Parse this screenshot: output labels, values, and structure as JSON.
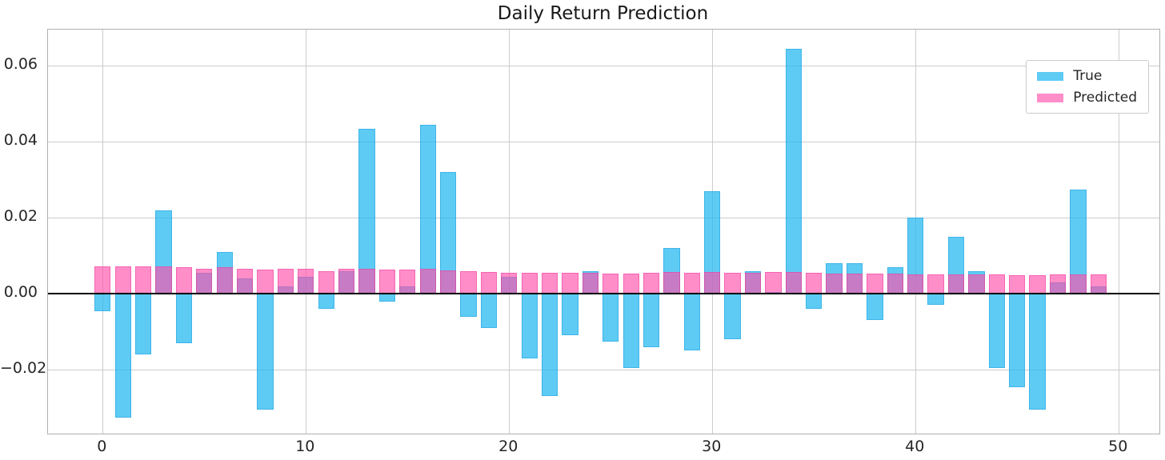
{
  "title": "Daily Return Prediction",
  "legend": {
    "items": [
      {
        "label": "True",
        "color": "rgba(40,185,240,0.75)"
      },
      {
        "label": "Predicted",
        "color": "rgba(255,80,170,0.65)"
      }
    ]
  },
  "colors": {
    "background": "#ffffff",
    "grid": "#cccccc",
    "spine": "#b0b0b0",
    "zero_line": "#000000",
    "text": "#262626",
    "true_bar": "rgba(40,185,240,0.75)",
    "true_bar_edge": "rgba(30,160,220,0.5)",
    "predicted_bar": "rgba(255,80,170,0.65)",
    "predicted_bar_edge": "rgba(235,50,150,0.45)"
  },
  "chart_data": {
    "type": "bar",
    "title": "Daily Return Prediction",
    "xlabel": "",
    "ylabel": "",
    "overlay": true,
    "bar_width": 0.8,
    "grid": true,
    "zero_line": true,
    "legend_position": "upper right",
    "xlim": [
      -2.69,
      52.0
    ],
    "ylim": [
      -0.0368,
      0.0695
    ],
    "x": [
      0,
      1,
      2,
      3,
      4,
      5,
      6,
      7,
      8,
      9,
      10,
      11,
      12,
      13,
      14,
      15,
      16,
      17,
      18,
      19,
      20,
      21,
      22,
      23,
      24,
      25,
      26,
      27,
      28,
      29,
      30,
      31,
      32,
      33,
      34,
      35,
      36,
      37,
      38,
      39,
      40,
      41,
      42,
      43,
      44,
      45,
      46,
      47,
      48,
      49
    ],
    "x_ticks": [
      {
        "value": 0,
        "label": "0"
      },
      {
        "value": 10,
        "label": "10"
      },
      {
        "value": 20,
        "label": "20"
      },
      {
        "value": 30,
        "label": "30"
      },
      {
        "value": 40,
        "label": "40"
      },
      {
        "value": 50,
        "label": "50"
      }
    ],
    "y_ticks": [
      {
        "value": 0.06,
        "label": "0.06"
      },
      {
        "value": 0.04,
        "label": "0.04"
      },
      {
        "value": 0.02,
        "label": "0.02"
      },
      {
        "value": 0.0,
        "label": "0.00"
      },
      {
        "value": -0.02,
        "label": "−0.02"
      }
    ],
    "series": [
      {
        "name": "True",
        "color": "rgba(40,185,240,0.75)",
        "edge_color": "rgba(30,160,220,0.5)",
        "values": [
          -0.0045,
          -0.0325,
          -0.016,
          0.022,
          -0.013,
          0.0055,
          0.011,
          0.004,
          -0.0305,
          0.002,
          0.0045,
          -0.004,
          0.006,
          0.0435,
          -0.002,
          0.002,
          0.0445,
          0.032,
          -0.006,
          -0.009,
          0.0045,
          -0.017,
          -0.027,
          -0.011,
          0.006,
          -0.0125,
          -0.0195,
          -0.014,
          0.012,
          -0.015,
          0.027,
          -0.012,
          0.006,
          0.0005,
          0.0645,
          -0.004,
          0.008,
          0.008,
          -0.007,
          0.007,
          0.02,
          -0.003,
          0.015,
          0.006,
          -0.0195,
          -0.0245,
          -0.0305,
          0.003,
          0.0275,
          0.002
        ]
      },
      {
        "name": "Predicted",
        "color": "rgba(255,80,170,0.65)",
        "edge_color": "rgba(235,50,150,0.45)",
        "values": [
          0.0072,
          0.0072,
          0.0071,
          0.0071,
          0.007,
          0.0065,
          0.007,
          0.0066,
          0.0063,
          0.0065,
          0.0065,
          0.006,
          0.0065,
          0.0066,
          0.0064,
          0.0063,
          0.0065,
          0.0061,
          0.006,
          0.0058,
          0.0056,
          0.0056,
          0.0055,
          0.0055,
          0.0055,
          0.0053,
          0.0053,
          0.0055,
          0.0057,
          0.0055,
          0.0057,
          0.0055,
          0.0055,
          0.0057,
          0.0057,
          0.0055,
          0.0054,
          0.0054,
          0.0053,
          0.0053,
          0.0051,
          0.005,
          0.005,
          0.005,
          0.005,
          0.0048,
          0.0048,
          0.005,
          0.0051,
          0.005
        ]
      }
    ]
  }
}
